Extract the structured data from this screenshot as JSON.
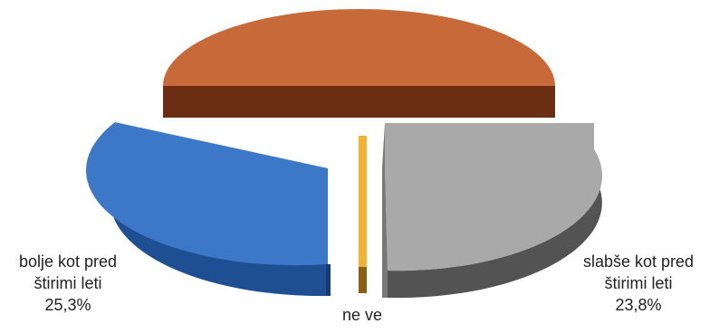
{
  "chart_data": {
    "type": "pie",
    "style": "3d-exploded",
    "slices": [
      {
        "label_lines": [
          "",
          "",
          ""
        ],
        "value": 50.0,
        "color": "#c8693a"
      },
      {
        "label_lines": [
          "slabše kot pred",
          "štirimi leti",
          "23,8%"
        ],
        "value": 23.8,
        "color": "#a9a9a9"
      },
      {
        "label_lines": [
          "ne ve",
          "",
          ""
        ],
        "value": 0.9,
        "color": "#f2b233"
      },
      {
        "label_lines": [
          "bolje kot pred",
          "štirimi leti",
          "25,3%"
        ],
        "value": 25.3,
        "color": "#3d78c8"
      }
    ]
  }
}
